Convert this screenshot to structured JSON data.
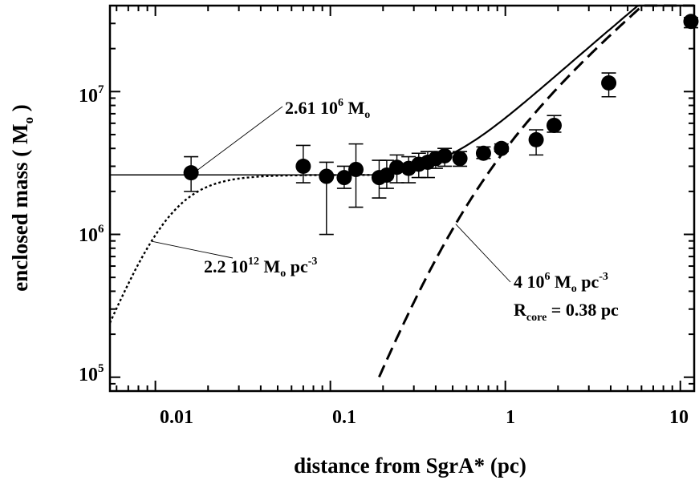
{
  "chart_data": {
    "type": "scatter",
    "xscale": "log",
    "yscale": "log",
    "xlim": [
      0.0055,
      12
    ],
    "ylim": [
      80000,
      40000000
    ],
    "xlabel": "distance from SgrA* (pc)",
    "ylabel": "enclosed mass ( M",
    "ylabel_sub": "o",
    "ylabel_end": ")",
    "x_ticks": [
      {
        "value": 0.01,
        "label": "0.01"
      },
      {
        "value": 0.1,
        "label": "0.1"
      },
      {
        "value": 1,
        "label": "1"
      },
      {
        "value": 10,
        "label": "10"
      }
    ],
    "y_ticks": [
      {
        "value": 100000,
        "base": "10",
        "exp": "5"
      },
      {
        "value": 1000000,
        "base": "10",
        "exp": "6"
      },
      {
        "value": 10000000,
        "base": "10",
        "exp": "7"
      }
    ],
    "series": [
      {
        "marker": "filled-circle",
        "points": [
          {
            "x": 0.016,
            "y": 2700000,
            "ylo": 2000000,
            "yhi": 3500000
          },
          {
            "x": 0.07,
            "y": 3000000,
            "ylo": 2300000,
            "yhi": 4200000
          },
          {
            "x": 0.095,
            "y": 2550000,
            "ylo": 1000000,
            "yhi": 3200000
          },
          {
            "x": 0.12,
            "y": 2500000,
            "ylo": 2100000,
            "yhi": 3000000
          },
          {
            "x": 0.14,
            "y": 2850000,
            "ylo": 1550000,
            "yhi": 4300000
          },
          {
            "x": 0.19,
            "y": 2500000,
            "ylo": 1800000,
            "yhi": 3300000
          },
          {
            "x": 0.21,
            "y": 2600000,
            "ylo": 2100000,
            "yhi": 3300000
          },
          {
            "x": 0.24,
            "y": 2950000,
            "ylo": 2300000,
            "yhi": 3600000
          },
          {
            "x": 0.28,
            "y": 2900000,
            "ylo": 2300000,
            "yhi": 3500000
          },
          {
            "x": 0.32,
            "y": 3100000,
            "ylo": 2500000,
            "yhi": 3700000
          },
          {
            "x": 0.36,
            "y": 3200000,
            "ylo": 2500000,
            "yhi": 3800000
          },
          {
            "x": 0.4,
            "y": 3400000,
            "ylo": 2900000,
            "yhi": 3800000
          },
          {
            "x": 0.45,
            "y": 3550000,
            "ylo": 3000000,
            "yhi": 4000000
          },
          {
            "x": 0.55,
            "y": 3400000,
            "ylo": 3000000,
            "yhi": 3800000
          },
          {
            "x": 0.75,
            "y": 3700000,
            "ylo": 3400000,
            "yhi": 4100000
          },
          {
            "x": 0.95,
            "y": 4000000,
            "ylo": 3800000,
            "yhi": 4300000
          },
          {
            "x": 1.5,
            "y": 4600000,
            "ylo": 3600000,
            "yhi": 5400000
          },
          {
            "x": 1.9,
            "y": 5800000,
            "ylo": 5200000,
            "yhi": 6800000
          },
          {
            "x": 3.9,
            "y": 11500000,
            "ylo": 9200000,
            "yhi": 13500000
          },
          {
            "x": 11.5,
            "y": 31000000,
            "ylo": 28000000,
            "yhi": 33000000
          }
        ]
      }
    ],
    "annotations": [
      {
        "parts": [
          {
            "t": "2.61 10"
          },
          {
            "t": "6",
            "sup": true
          },
          {
            "t": " M"
          },
          {
            "t": "o",
            "sub": true
          }
        ]
      },
      {
        "parts": [
          {
            "t": "2.2 10"
          },
          {
            "t": "12",
            "sup": true
          },
          {
            "t": " M"
          },
          {
            "t": "o",
            "sub": true
          },
          {
            "t": " pc"
          },
          {
            "t": "-3",
            "sup": true
          }
        ]
      },
      {
        "parts": [
          {
            "t": "4 10"
          },
          {
            "t": "6",
            "sup": true
          },
          {
            "t": " M"
          },
          {
            "t": "o",
            "sub": true
          },
          {
            "t": " pc"
          },
          {
            "t": "-3",
            "sup": true
          }
        ]
      },
      {
        "parts": [
          {
            "t": "R"
          },
          {
            "t": "core",
            "sub": true
          },
          {
            "t": " = 0.38 pc"
          }
        ]
      }
    ]
  }
}
